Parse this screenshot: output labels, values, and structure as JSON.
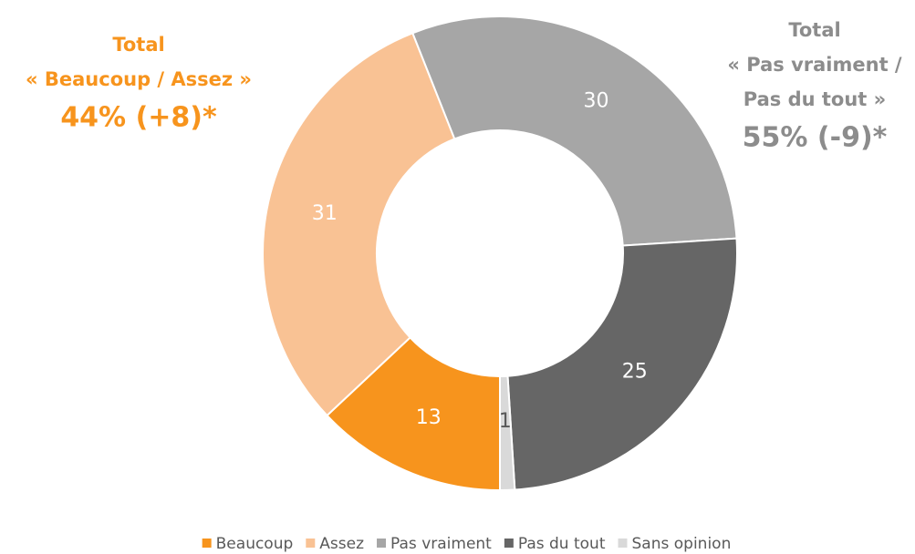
{
  "chart_data": {
    "type": "donut",
    "categories": [
      "Beaucoup",
      "Assez",
      "Pas vraiment",
      "Pas du tout",
      "Sans opinion"
    ],
    "values": [
      13,
      31,
      30,
      25,
      1
    ],
    "colors": [
      "#f7941d",
      "#f9c294",
      "#a6a6a6",
      "#666666",
      "#d9d9d9"
    ],
    "label_colors": [
      "#ffffff",
      "#ffffff",
      "#ffffff",
      "#ffffff",
      "#595959"
    ],
    "legend": "bottom",
    "annotations": [
      {
        "lines": [
          "Total",
          "« Beaucoup / Assez »",
          "44% (+8)*"
        ],
        "color": "#f7941d"
      },
      {
        "lines": [
          "Total",
          "« Pas vraiment /",
          "Pas du tout »",
          "55% (-9)*"
        ],
        "color": "#8c8c8c"
      }
    ]
  }
}
